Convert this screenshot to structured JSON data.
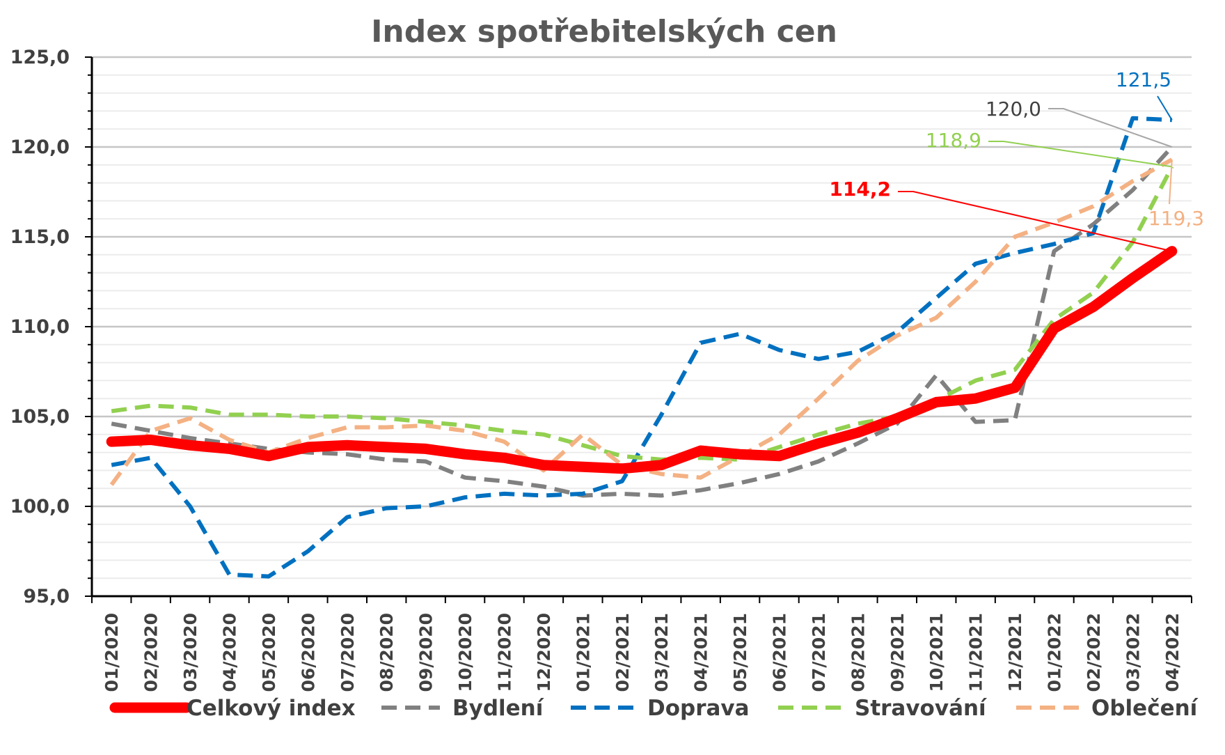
{
  "chart_data": {
    "type": "line",
    "title": "Index spotřebitelských cen",
    "xlabel": "",
    "ylabel": "",
    "ylim": [
      95,
      125
    ],
    "yticks": [
      "95,0",
      "100,0",
      "105,0",
      "110,0",
      "115,0",
      "120,0",
      "125,0"
    ],
    "categories": [
      "01/2020",
      "02/2020",
      "03/2020",
      "04/2020",
      "05/2020",
      "06/2020",
      "07/2020",
      "08/2020",
      "09/2020",
      "10/2020",
      "11/2020",
      "12/2020",
      "01/2021",
      "02/2021",
      "03/2021",
      "04/2021",
      "05/2021",
      "06/2021",
      "07/2021",
      "08/2021",
      "09/2021",
      "10/2021",
      "11/2021",
      "12/2021",
      "01/2022",
      "02/2022",
      "03/2022",
      "04/2022"
    ],
    "grid": true,
    "legend_position": "bottom",
    "series": [
      {
        "name": "Celkový index",
        "color": "#ff0000",
        "style": "solid",
        "values": [
          103.6,
          103.7,
          103.4,
          103.2,
          102.8,
          103.3,
          103.4,
          103.3,
          103.2,
          102.9,
          102.7,
          102.3,
          102.2,
          102.1,
          102.3,
          103.1,
          102.9,
          102.8,
          103.5,
          104.1,
          104.9,
          105.8,
          106.0,
          106.6,
          109.9,
          111.1,
          112.7,
          114.2
        ]
      },
      {
        "name": "Bydlení",
        "color": "#808080",
        "style": "dashed",
        "values": [
          104.6,
          104.2,
          103.8,
          103.5,
          103.2,
          103.0,
          102.9,
          102.6,
          102.5,
          101.6,
          101.4,
          101.1,
          100.6,
          100.7,
          100.6,
          100.9,
          101.3,
          101.8,
          102.5,
          103.5,
          104.6,
          107.3,
          104.7,
          104.8,
          114.2,
          115.7,
          117.6,
          120.0
        ]
      },
      {
        "name": "Doprava",
        "color": "#0070c0",
        "style": "dashed",
        "values": [
          102.3,
          102.7,
          100.0,
          96.2,
          96.1,
          97.5,
          99.4,
          99.9,
          100.0,
          100.5,
          100.7,
          100.6,
          100.7,
          101.4,
          105.1,
          109.1,
          109.6,
          108.7,
          108.2,
          108.6,
          109.7,
          111.6,
          113.5,
          114.1,
          114.6,
          115.2,
          121.6,
          121.5
        ]
      },
      {
        "name": "Stravování",
        "color": "#92d050",
        "style": "dashed",
        "values": [
          105.3,
          105.6,
          105.5,
          105.1,
          105.1,
          105.0,
          105.0,
          104.9,
          104.7,
          104.5,
          104.2,
          104.0,
          103.4,
          102.8,
          102.6,
          102.7,
          102.6,
          103.3,
          104.0,
          104.6,
          105.0,
          105.9,
          107.0,
          107.6,
          110.4,
          111.9,
          114.7,
          118.9
        ]
      },
      {
        "name": "Oblečení",
        "color": "#f4b183",
        "style": "dashed",
        "values": [
          101.2,
          104.2,
          104.9,
          103.7,
          103.0,
          103.8,
          104.4,
          104.4,
          104.5,
          104.2,
          103.6,
          102.0,
          104.0,
          102.3,
          101.8,
          101.6,
          102.8,
          104.0,
          106.0,
          108.1,
          109.5,
          110.5,
          112.5,
          115.0,
          115.8,
          116.7,
          118.1,
          119.3
        ]
      }
    ],
    "annotations": [
      {
        "text": "114,2",
        "series": "Celkový index",
        "color": "#ff0000",
        "bold": true
      },
      {
        "text": "120,0",
        "series": "Bydlení",
        "color": "#404040",
        "bold": false
      },
      {
        "text": "121,5",
        "series": "Doprava",
        "color": "#0070c0",
        "bold": false
      },
      {
        "text": "118,9",
        "series": "Stravování",
        "color": "#92d050",
        "bold": false
      },
      {
        "text": "119,3",
        "series": "Oblečení",
        "color": "#f4b183",
        "bold": false
      }
    ]
  }
}
